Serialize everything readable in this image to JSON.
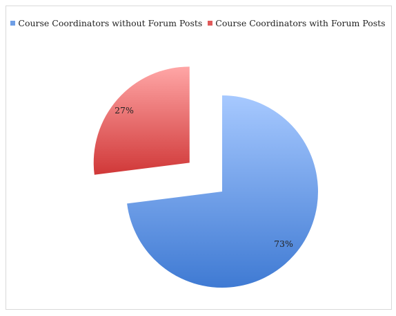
{
  "chart_data": {
    "type": "pie",
    "title": "",
    "legend_position": "top",
    "slices": [
      {
        "name": "Course Coordinators without Forum Posts",
        "value": 73,
        "label": "73%",
        "color": "#6f9fe6",
        "exploded": false
      },
      {
        "name": "Course Coordinators with Forum Posts",
        "value": 27,
        "label": "27%",
        "color": "#e05a5a",
        "exploded": true
      }
    ]
  }
}
